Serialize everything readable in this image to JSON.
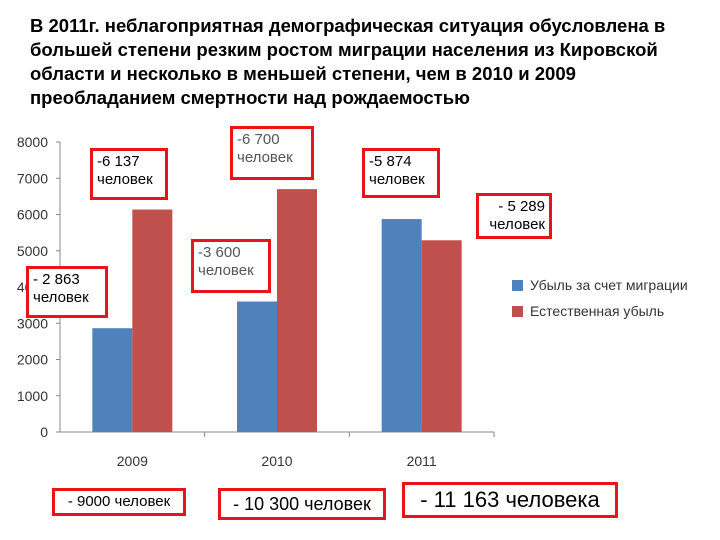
{
  "title": "В 2011г. неблагоприятная демографическая ситуация обусловлена в большей степени резким ростом миграции населения из Кировской области и несколько в меньшей степени, чем в 2010 и 2009 преобладанием смертности над рождаемостью",
  "colors": {
    "migration": "#4f81bd",
    "natural": "#c0504d",
    "callout_border": "#e8141a"
  },
  "chart_data": {
    "type": "bar",
    "categories": [
      "2009",
      "2010",
      "2011"
    ],
    "series": [
      {
        "name": "Убыль за счет миграции",
        "values": [
          2863,
          3600,
          5874
        ]
      },
      {
        "name": "Естественная убыль",
        "values": [
          6137,
          6700,
          5289
        ]
      }
    ],
    "ylim": [
      0,
      8000
    ],
    "yticks": [
      "0",
      "1000",
      "2000",
      "3000",
      "4000",
      "5000",
      "6000",
      "7000",
      "8000"
    ],
    "grid": false,
    "legend": "right",
    "annotations": [
      {
        "id": "m2009",
        "text": "- 2 863\nчеловек"
      },
      {
        "id": "n2009",
        "text": "-6 137\nчеловек"
      },
      {
        "id": "m2010",
        "text": "-3 600\nчеловек"
      },
      {
        "id": "n2010",
        "text": "-6 700\nчеловек"
      },
      {
        "id": "m2011",
        "text": "-5 874\nчеловек"
      },
      {
        "id": "n2011",
        "text": "- 5 289\nчеловек"
      }
    ],
    "totals": [
      "- 9000 человек",
      "- 10 300 человек",
      "- 11 163 человека"
    ]
  }
}
